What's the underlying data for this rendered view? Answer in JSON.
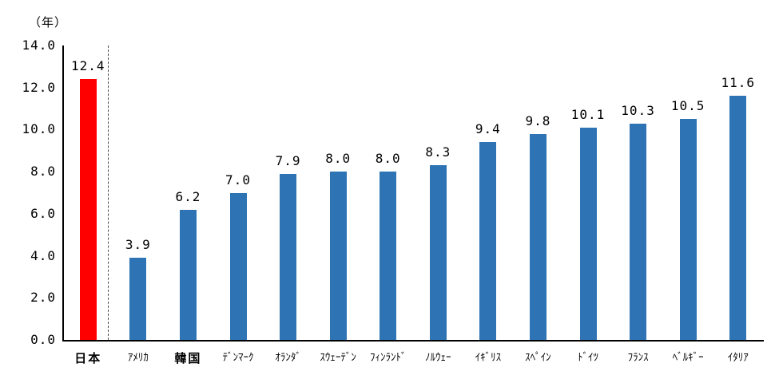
{
  "chart_data": {
    "type": "bar",
    "title": "",
    "unit_label": "（年）",
    "categories": [
      "日本",
      "ｱﾒﾘｶ",
      "韓国",
      "ﾃﾞﾝﾏｰｸ",
      "ｵﾗﾝﾀﾞ",
      "ｽｳｪｰﾃﾞﾝ",
      "ﾌｨﾝﾗﾝﾄﾞ",
      "ﾉﾙｳｪｰ",
      "ｲｷﾞﾘｽ",
      "ｽﾍﾟｲﾝ",
      "ﾄﾞｲﾂ",
      "ﾌﾗﾝｽ",
      "ﾍﾞﾙｷﾞｰ",
      "ｲﾀﾘｱ"
    ],
    "values": [
      12.4,
      3.9,
      6.2,
      7.0,
      7.9,
      8.0,
      8.0,
      8.3,
      9.4,
      9.8,
      10.1,
      10.3,
      10.5,
      11.6
    ],
    "value_labels": [
      "12.4",
      "3.9",
      "6.2",
      "7.0",
      "7.9",
      "8.0",
      "8.0",
      "8.3",
      "9.4",
      "9.8",
      "10.1",
      "10.3",
      "10.5",
      "11.6"
    ],
    "highlight_index": 0,
    "separator_after_index": 0,
    "ylim": [
      0,
      14
    ],
    "yticks": [
      "14.0",
      "12.0",
      "10.0",
      "8.0",
      "6.0",
      "4.0",
      "2.0",
      "0.0"
    ],
    "ytick_values": [
      14,
      12,
      10,
      8,
      6,
      4,
      2,
      0
    ],
    "grid": false,
    "legend": null,
    "colors": {
      "highlight_bar": "#ff0000",
      "default_bar": "#2e74b5",
      "axis": "#000000",
      "separator": "#4d4d4d",
      "text": "#000000"
    }
  }
}
